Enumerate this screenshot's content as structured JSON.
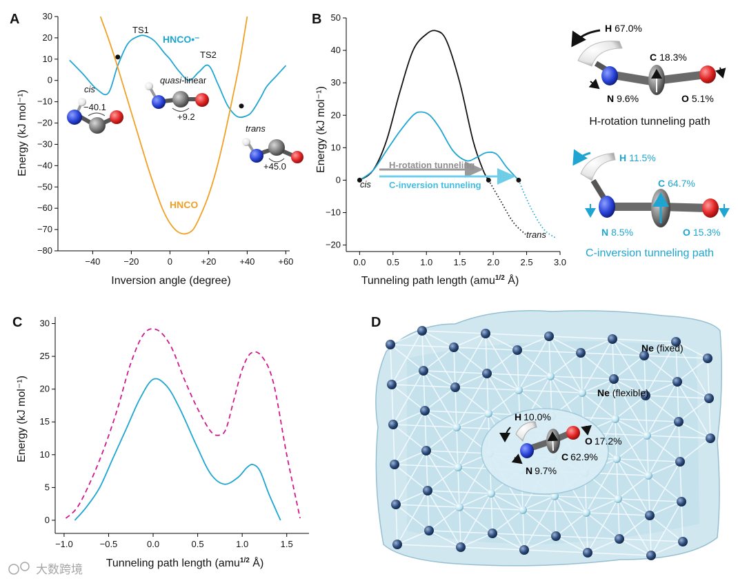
{
  "colors": {
    "hnco_cation": "#1ea5d1",
    "hnco": "#f0a024",
    "black": "#111111",
    "magenta": "#d1188a",
    "gray_arrow": "#9a9a9a",
    "cyan_arrow": "#6fcde8",
    "atom_N": "#2a44d8",
    "atom_O": "#e02424",
    "atom_C": "#7c7c7c",
    "atom_H": "#f0f0f0",
    "ne": "#27466f",
    "cage": "#b9dbe8"
  },
  "panelA": {
    "label": "A",
    "xlabel": "Inversion angle (degree)",
    "ylabel": "Energy (kJ mol⁻¹)",
    "ts1": "TS1",
    "ts2": "TS2",
    "cation_label": "HNCO•⁻",
    "neutral_label": "HNCO",
    "cis": "cis",
    "quasi": "quasi",
    "linear": "-linear",
    "trans": "trans",
    "angle_cis": "−40.1",
    "angle_quasi": "+9.2",
    "angle_trans": "+45.0",
    "xticks": [
      "−40",
      "−20",
      "0",
      "+20",
      "+40",
      "+60"
    ],
    "yticks": [
      "30",
      "20",
      "10",
      "0",
      "−10",
      "−20",
      "−30",
      "−40",
      "−50",
      "−60",
      "−70",
      "−80"
    ]
  },
  "panelB": {
    "label": "B",
    "xlabel": "Tunneling path length (amu",
    "xlabel_sup": "1/2",
    "xlabel_end": " Å)",
    "ylabel": "Energy (kJ mol⁻¹)",
    "cis": "cis",
    "trans": "trans",
    "h_rot": "H-rotation tunneling",
    "c_inv": "C-inversion tunneling",
    "xticks": [
      "0.0",
      "0.5",
      "1.0",
      "1.5",
      "2.0",
      "2.5",
      "3.0"
    ],
    "yticks": [
      "50",
      "40",
      "30",
      "20",
      "10",
      "0",
      "−10",
      "−20"
    ],
    "h_path": {
      "H": "H",
      "H_val": "67.0%",
      "C": "C",
      "C_val": "18.3%",
      "N": "N",
      "N_val": "9.6%",
      "O": "O",
      "O_val": "5.1%",
      "caption": "H-rotation tunneling path"
    },
    "c_path": {
      "H": "H",
      "H_val": "11.5%",
      "C": "C",
      "C_val": "64.7%",
      "N": "N",
      "N_val": "8.5%",
      "O": "O",
      "O_val": "15.3%",
      "caption": "C-inversion tunneling path"
    }
  },
  "panelC": {
    "label": "C",
    "xlabel": "Tunneling path length (amu",
    "xlabel_sup": "1/2",
    "xlabel_end": " Å)",
    "ylabel": "Energy (kJ mol⁻¹)",
    "xticks": [
      "−1.0",
      "−0.5",
      "0.0",
      "0.5",
      "1.0",
      "1.5"
    ],
    "yticks": [
      "30",
      "25",
      "20",
      "15",
      "10",
      "5",
      "0"
    ]
  },
  "panelD": {
    "label": "D",
    "ne_fixed": "Ne",
    "fixed": " (fixed)",
    "ne_flex": "Ne",
    "flexible": " (flexible)",
    "H": "H",
    "H_val": "10.0%",
    "O": "O",
    "O_val": "17.2%",
    "C": "C",
    "C_val": "62.9%",
    "N": "N",
    "N_val": "9.7%"
  },
  "watermark": "大数跨境",
  "chart_data": [
    {
      "type": "line",
      "panel": "A",
      "xlabel": "Inversion angle (degree)",
      "ylabel": "Energy (kJ mol-1)",
      "xlim": [
        -58,
        62
      ],
      "ylim": [
        -80,
        30
      ],
      "series": [
        {
          "name": "HNCO•⁻",
          "x": [
            -52,
            -45,
            -38,
            -32,
            -27,
            -22,
            -17,
            -13,
            -8,
            -3,
            0,
            5,
            10,
            15,
            20,
            25,
            30,
            35,
            40,
            43,
            47,
            50,
            55,
            60
          ],
          "y": [
            9.5,
            3,
            -4,
            -6,
            7,
            17,
            20.5,
            21,
            18.5,
            13,
            10,
            4,
            0,
            4,
            7,
            -2,
            -12,
            -17,
            -16.5,
            -14,
            -8,
            -3,
            2,
            7
          ]
        },
        {
          "name": "HNCO",
          "x": [
            -36,
            -32,
            -28,
            -24,
            -20,
            -16,
            -12,
            -8,
            -4,
            0,
            4,
            8,
            12,
            16,
            20,
            24,
            28,
            32,
            36,
            40
          ],
          "y": [
            30,
            20,
            9,
            -3,
            -15,
            -27,
            -39,
            -50,
            -60,
            -67,
            -71,
            -72,
            -70,
            -63,
            -54,
            -42,
            -27,
            -10,
            8,
            30
          ]
        }
      ],
      "markers": [
        {
          "x": -27,
          "y": 11
        },
        {
          "x": 37,
          "y": -12
        }
      ]
    },
    {
      "type": "line",
      "panel": "B",
      "xlabel": "Tunneling path length (amu1/2 Å)",
      "ylabel": "Energy (kJ mol-1)",
      "xlim": [
        -0.2,
        3.0
      ],
      "ylim": [
        -22,
        50
      ],
      "series": [
        {
          "name": "H-rotation",
          "x": [
            0,
            0.2,
            0.4,
            0.6,
            0.8,
            1.0,
            1.15,
            1.3,
            1.5,
            1.7,
            1.85,
            1.93
          ],
          "y": [
            0,
            3,
            12,
            27,
            40,
            45,
            46,
            43,
            30,
            12,
            3,
            0
          ]
        },
        {
          "name": "C-inversion",
          "x": [
            0,
            0.2,
            0.4,
            0.6,
            0.8,
            0.92,
            1.05,
            1.2,
            1.4,
            1.6,
            1.75,
            1.9,
            2.05,
            2.2,
            2.38
          ],
          "y": [
            0,
            3,
            9,
            15,
            20,
            21,
            20,
            16,
            9,
            6,
            7,
            8.5,
            8,
            4,
            0
          ]
        },
        {
          "name": "H-rotation (dotted)",
          "x": [
            1.93,
            2.1,
            2.3,
            2.5
          ],
          "y": [
            0,
            -6,
            -13,
            -17
          ]
        },
        {
          "name": "C-inversion (dotted)",
          "x": [
            2.38,
            2.55,
            2.75,
            2.95
          ],
          "y": [
            0,
            -8,
            -15,
            -18
          ]
        }
      ],
      "markers": [
        {
          "x": 0,
          "y": 0
        },
        {
          "x": 1.93,
          "y": 0
        },
        {
          "x": 2.38,
          "y": 0
        }
      ]
    },
    {
      "type": "line",
      "panel": "C",
      "xlabel": "Tunneling path length (amu1/2 Å)",
      "ylabel": "Energy (kJ mol-1)",
      "xlim": [
        -1.1,
        1.75
      ],
      "ylim": [
        -2,
        31
      ],
      "series": [
        {
          "name": "solid",
          "style": "solid",
          "x": [
            -0.88,
            -0.75,
            -0.6,
            -0.45,
            -0.3,
            -0.15,
            0,
            0.15,
            0.3,
            0.5,
            0.65,
            0.8,
            0.95,
            1.05,
            1.12,
            1.2,
            1.3,
            1.43
          ],
          "y": [
            0,
            2,
            5,
            9.5,
            14,
            18.5,
            21.5,
            20.5,
            17,
            11,
            7,
            5.5,
            6.5,
            8,
            8.5,
            7.5,
            4,
            0
          ]
        },
        {
          "name": "dashed",
          "style": "dashed",
          "x": [
            -0.98,
            -0.85,
            -0.7,
            -0.55,
            -0.4,
            -0.25,
            -0.1,
            0.05,
            0.2,
            0.35,
            0.5,
            0.65,
            0.75,
            0.82,
            0.9,
            1.0,
            1.1,
            1.22,
            1.35,
            1.5,
            1.65
          ],
          "y": [
            0.3,
            2,
            6,
            11,
            17,
            24,
            28.5,
            29,
            26.5,
            21.5,
            17,
            13.5,
            13,
            14,
            18,
            23,
            25.5,
            25,
            21,
            10,
            0.3
          ]
        }
      ]
    }
  ]
}
